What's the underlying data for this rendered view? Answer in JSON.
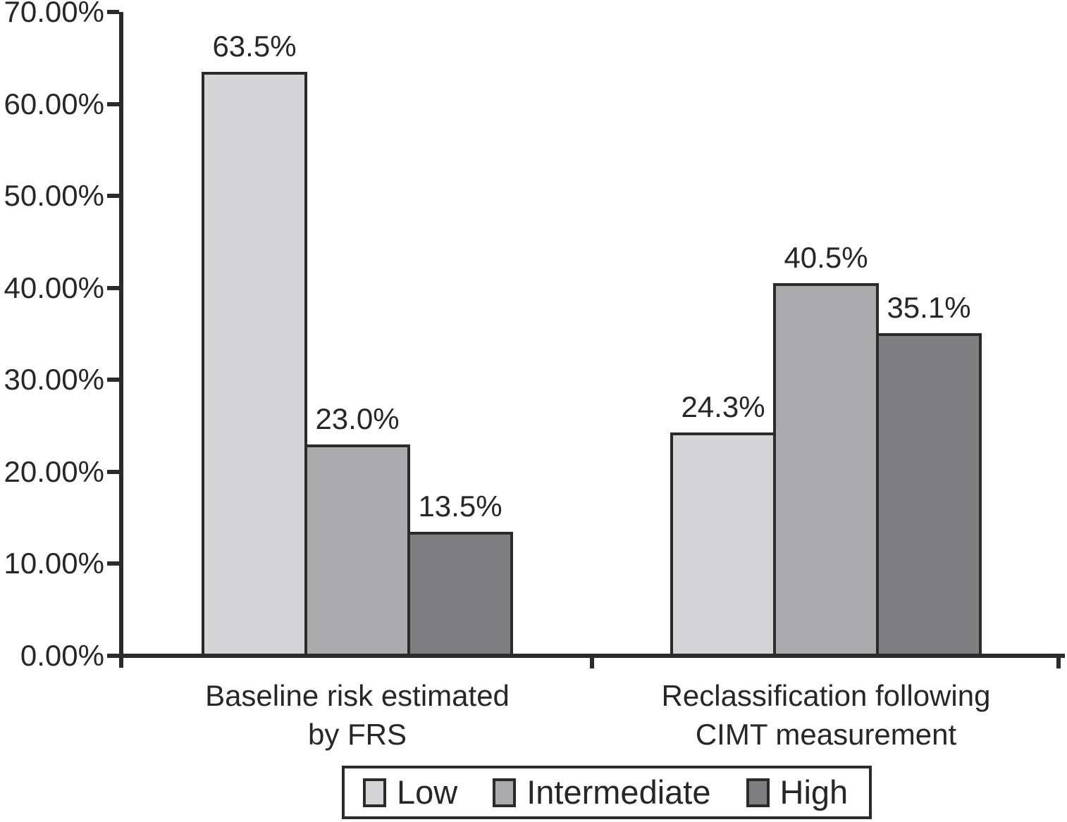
{
  "chart_data": {
    "type": "bar",
    "title": "",
    "xlabel": "",
    "ylabel": "",
    "grid": false,
    "legend_position": "bottom",
    "axis_color": "#2b2b2b",
    "background_color": "#ffffff",
    "ylim": [
      0,
      70
    ],
    "y_tick_labels": [
      "70.00%",
      "60.00%",
      "50.00%",
      "40.00%",
      "30.00%",
      "20.00%",
      "10.00%",
      "0.00%"
    ],
    "categories": [
      {
        "lines": [
          "Baseline risk estimated",
          "by FRS"
        ]
      },
      {
        "lines": [
          "Reclassification following",
          "CIMT measurement"
        ]
      }
    ],
    "series": [
      {
        "name": "Low",
        "color": "#d5d5d7",
        "values": [
          63.5,
          24.3
        ],
        "labels": [
          "63.5%",
          "24.3%"
        ]
      },
      {
        "name": "Intermediate",
        "color": "#ababad",
        "values": [
          23.0,
          40.5
        ],
        "labels": [
          "23.0%",
          "40.5%"
        ]
      },
      {
        "name": "High",
        "color": "#7f7f81",
        "values": [
          13.5,
          35.1
        ],
        "labels": [
          "13.5%",
          "35.1%"
        ]
      }
    ]
  }
}
